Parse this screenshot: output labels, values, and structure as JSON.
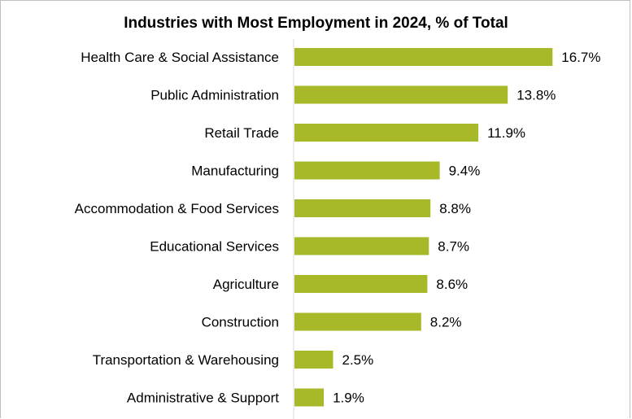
{
  "chart_data": {
    "type": "bar",
    "orientation": "horizontal",
    "title": "Industries with Most Employment in 2024, % of Total",
    "xlabel": "",
    "ylabel": "",
    "categories": [
      "Health Care & Social Assistance",
      "Public Administration",
      "Retail Trade",
      "Manufacturing",
      "Accommodation & Food Services",
      "Educational Services",
      "Agriculture",
      "Construction",
      "Transportation & Warehousing",
      "Administrative & Support"
    ],
    "values": [
      16.7,
      13.8,
      11.9,
      9.4,
      8.8,
      8.7,
      8.6,
      8.2,
      2.5,
      1.9
    ],
    "data_labels": [
      "16.7%",
      "13.8%",
      "11.9%",
      "9.4%",
      "8.8%",
      "8.7%",
      "8.6%",
      "8.2%",
      "2.5%",
      "1.9%"
    ],
    "bar_color": "#a7b828",
    "grid": false,
    "legend": "none"
  }
}
